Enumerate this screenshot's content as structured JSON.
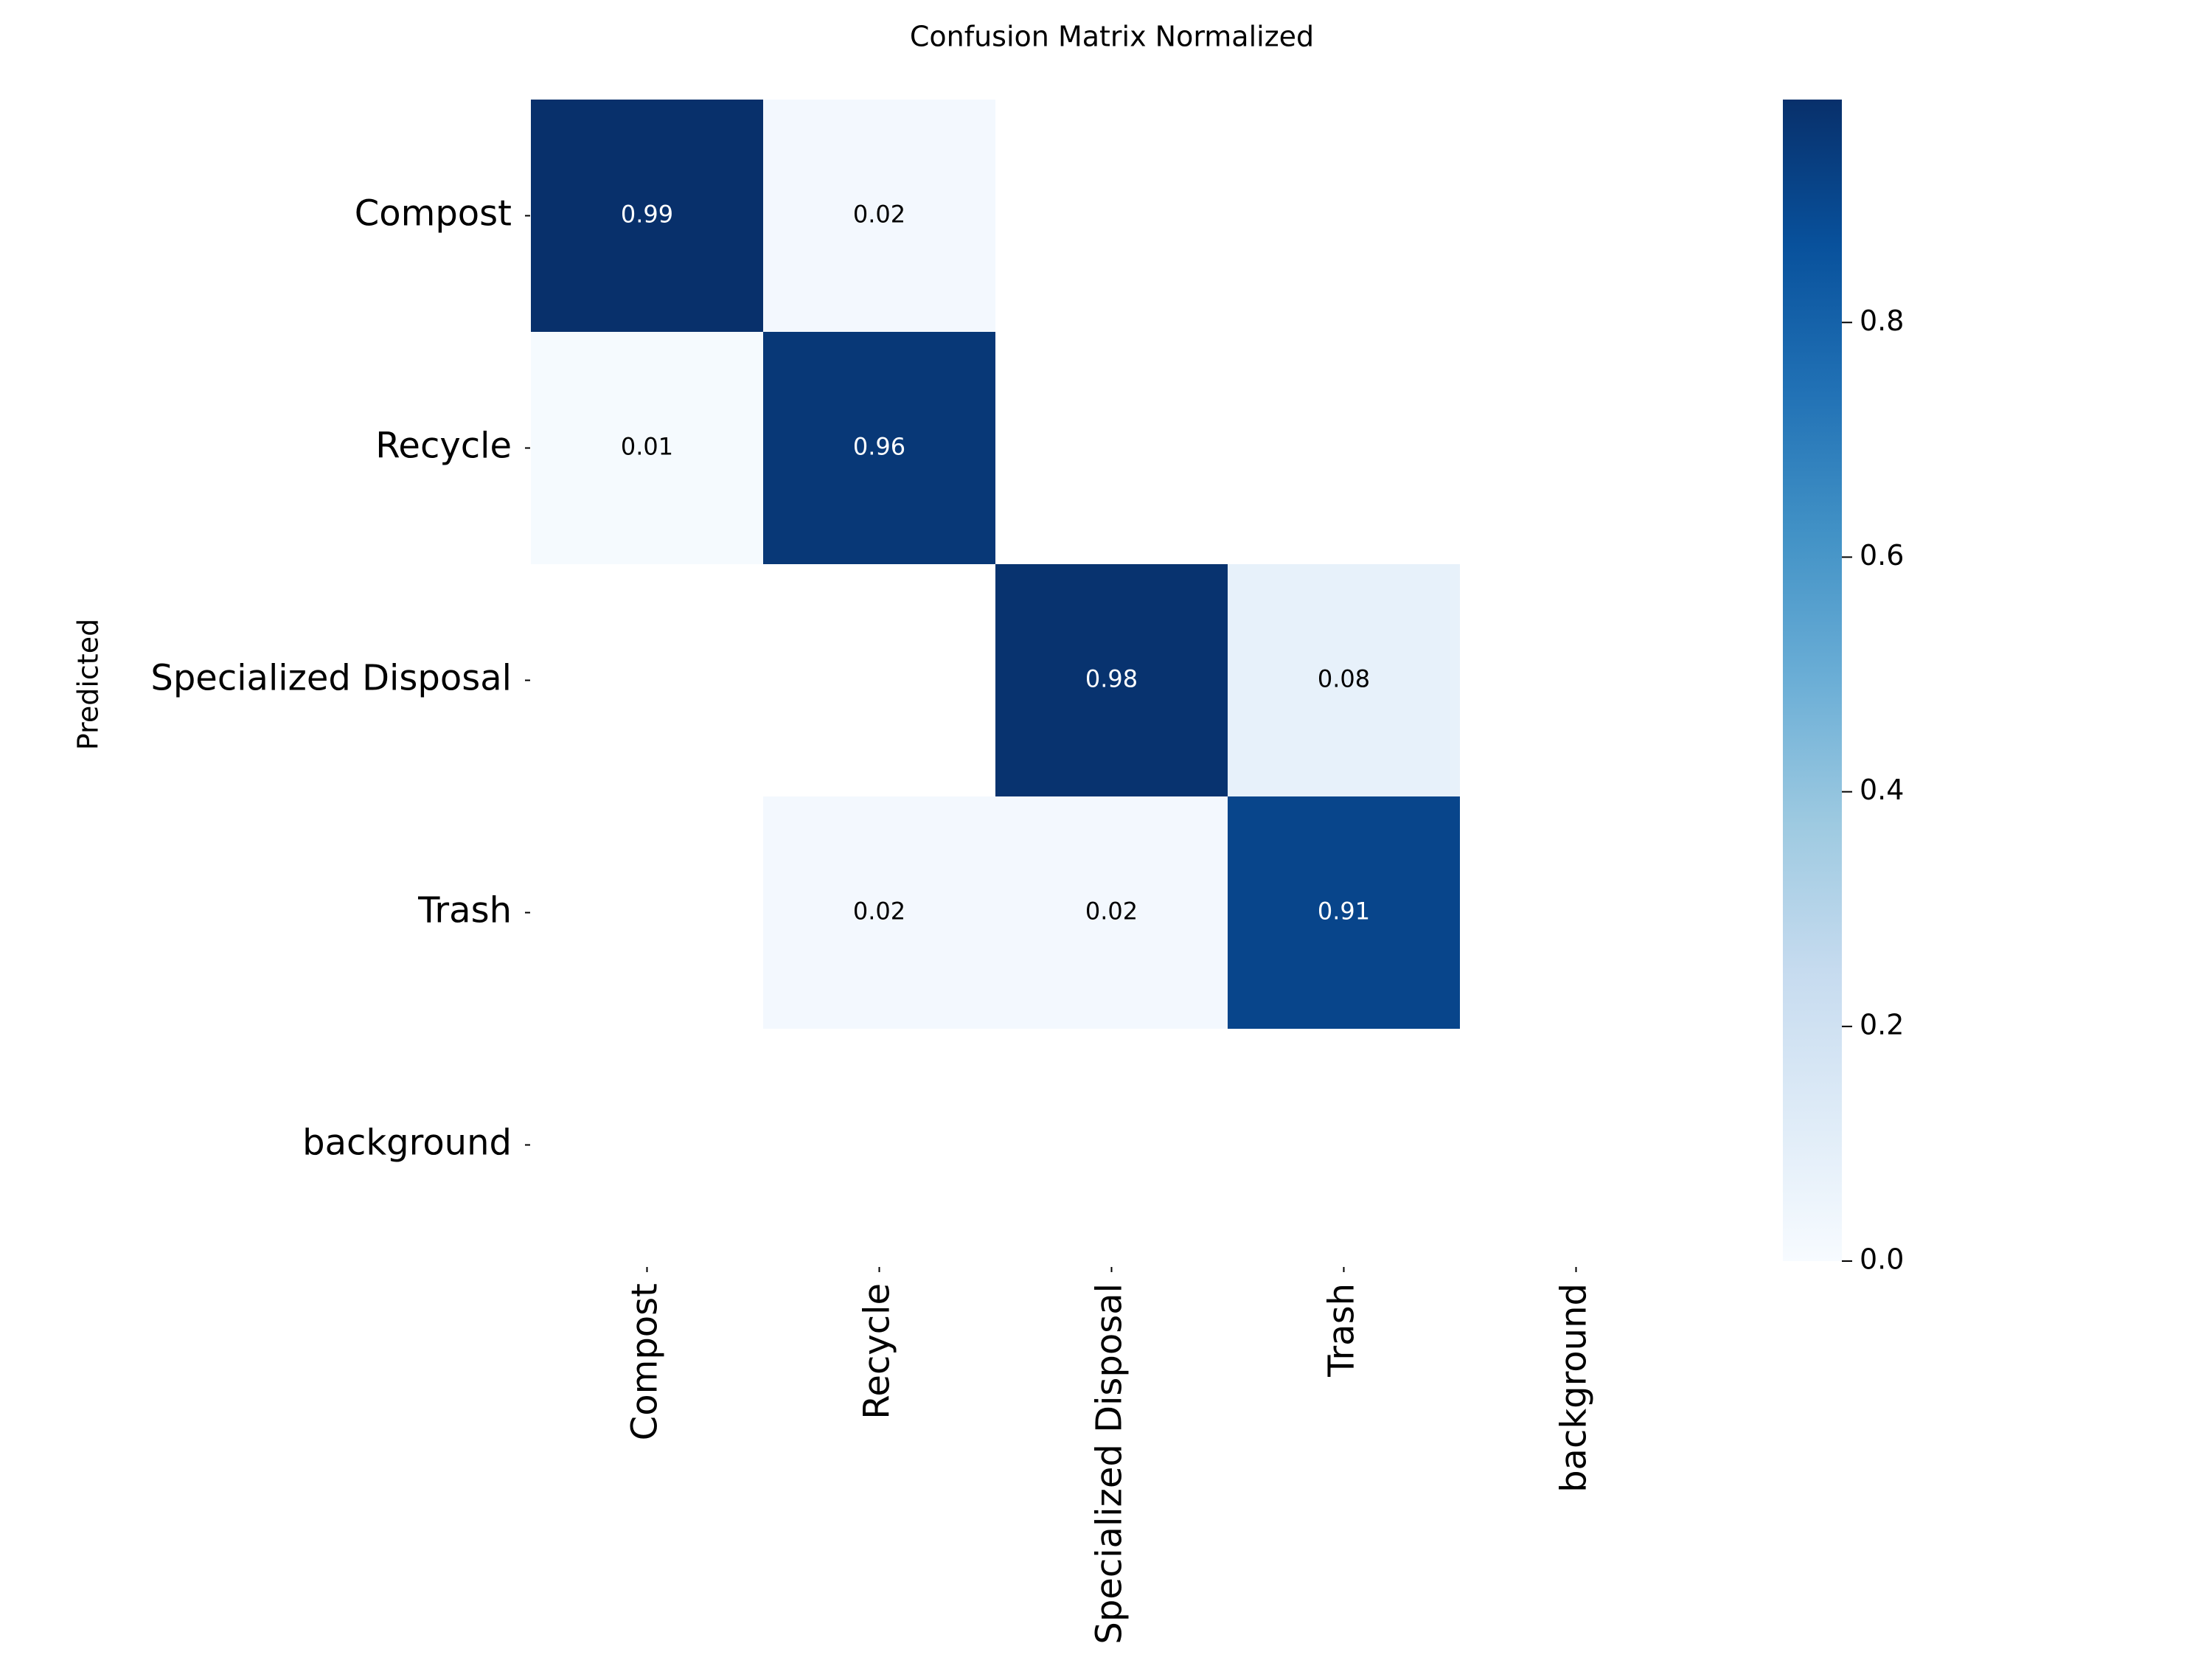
{
  "chart_data": {
    "type": "heatmap",
    "title": "Confusion Matrix Normalized",
    "xlabel": "",
    "ylabel": "Predicted",
    "x_categories": [
      "Compost",
      "Recycle",
      "Specialized Disposal",
      "Trash",
      "background"
    ],
    "y_categories": [
      "Compost",
      "Recycle",
      "Specialized Disposal",
      "Trash",
      "background"
    ],
    "matrix": [
      [
        0.99,
        0.02,
        null,
        null,
        null
      ],
      [
        0.01,
        0.96,
        null,
        null,
        null
      ],
      [
        null,
        null,
        0.98,
        0.08,
        null
      ],
      [
        null,
        0.02,
        0.02,
        0.91,
        null
      ],
      [
        null,
        null,
        null,
        null,
        null
      ]
    ],
    "colormap": "Blues",
    "colorbar": {
      "vmin": 0.0,
      "vmax": 0.99,
      "ticks": [
        0.0,
        0.2,
        0.4,
        0.6,
        0.8
      ],
      "tick_labels": [
        "0.0",
        "0.2",
        "0.4",
        "0.6",
        "0.8"
      ]
    },
    "grid": false
  }
}
